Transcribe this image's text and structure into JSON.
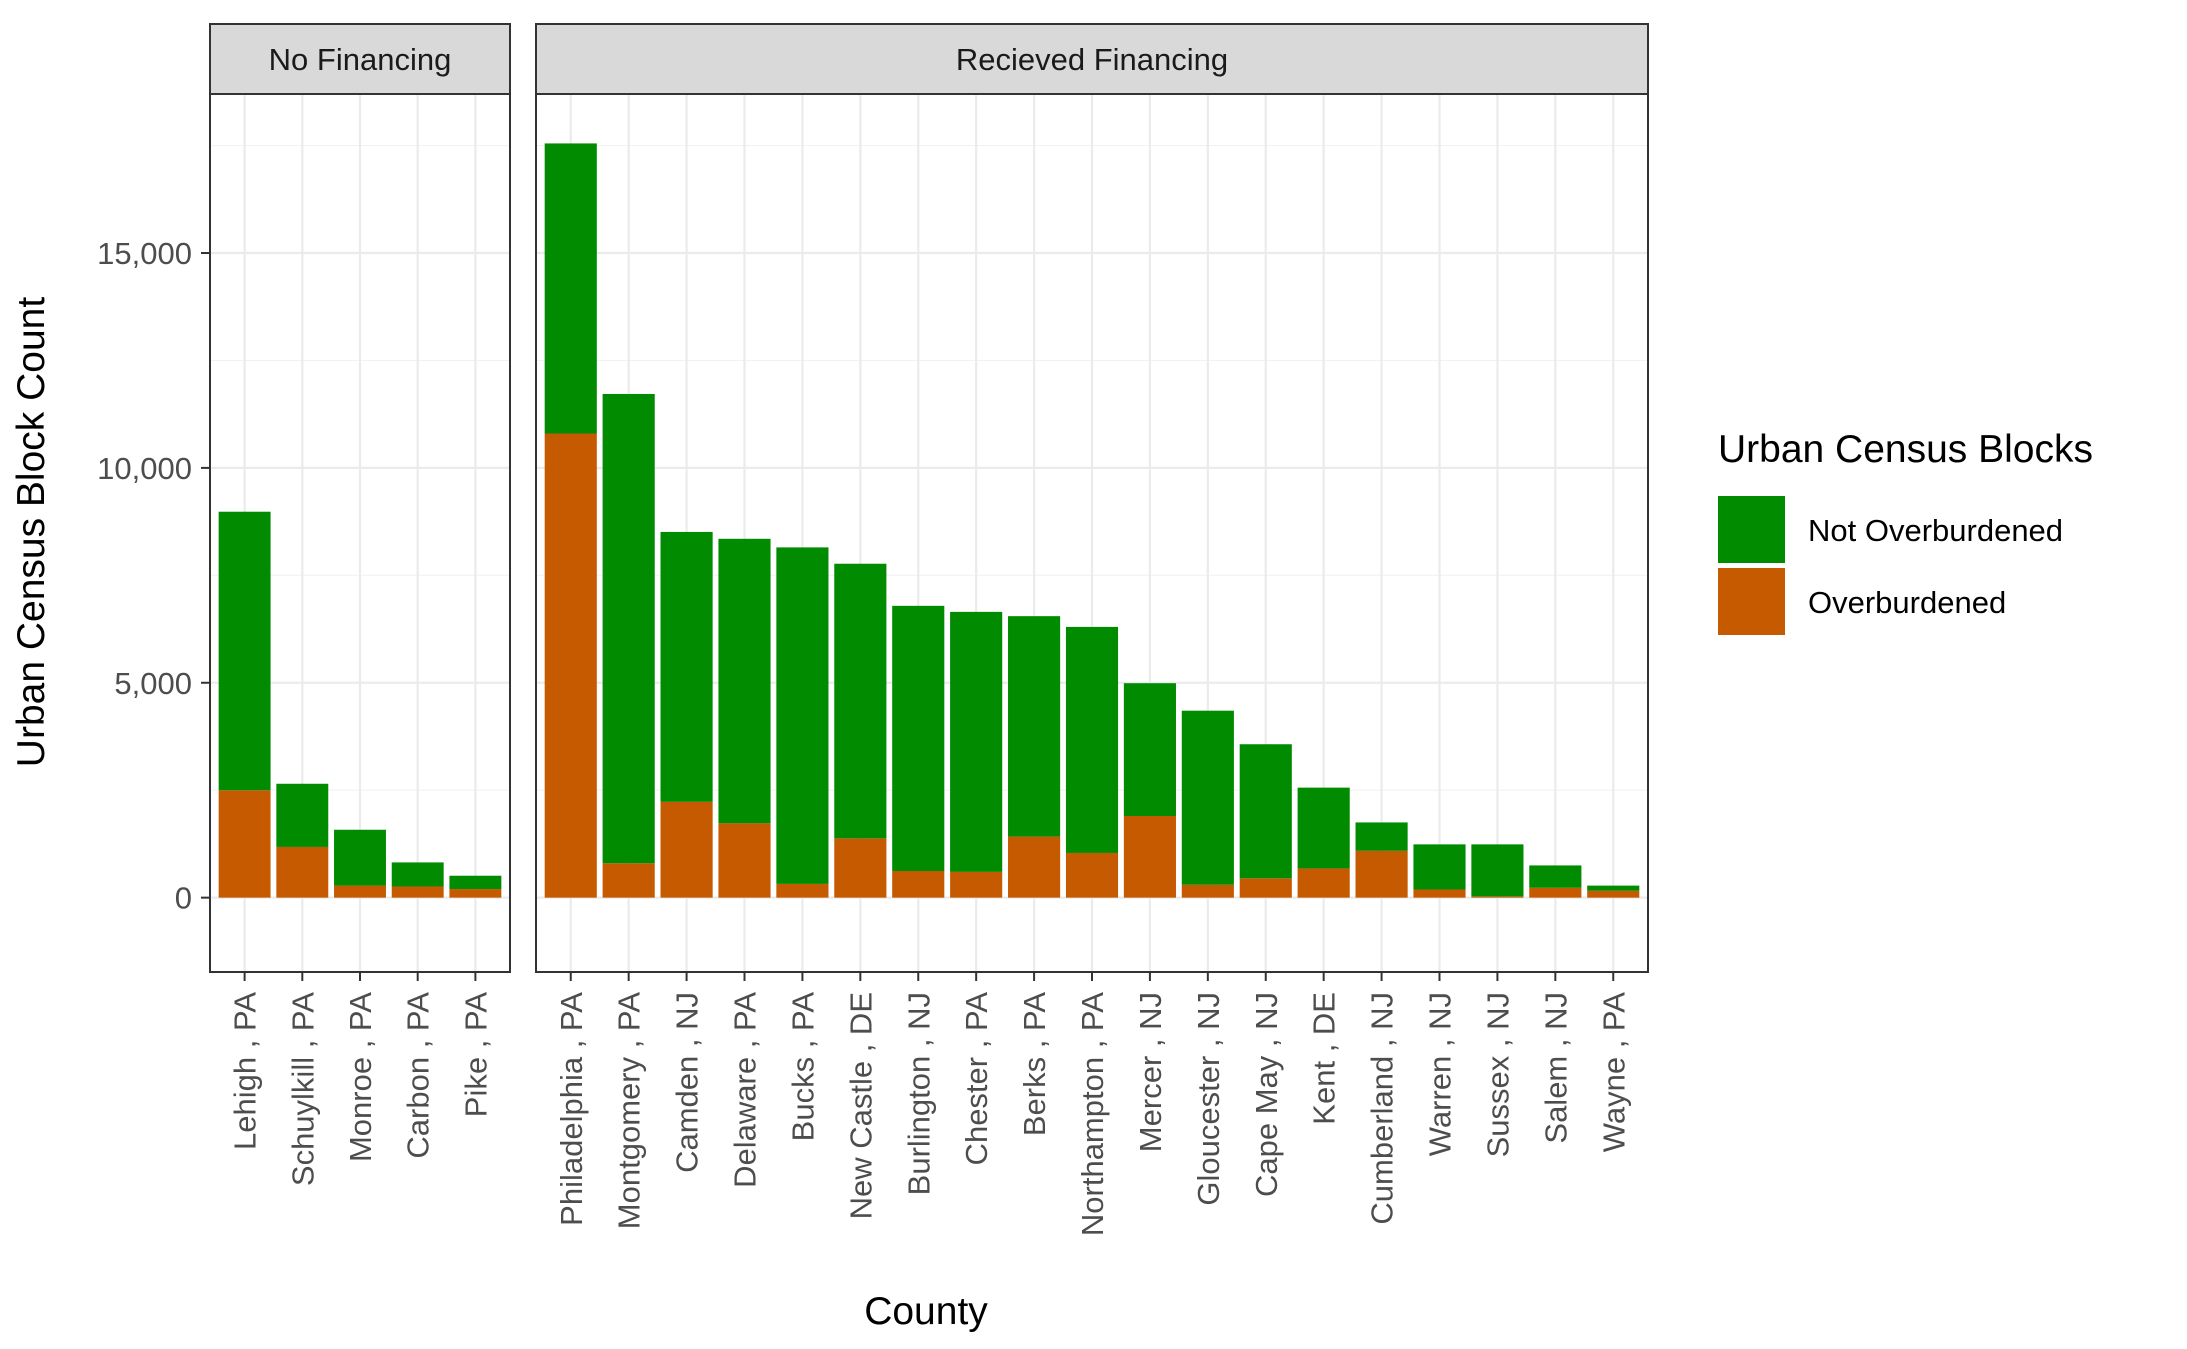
{
  "chart_data": {
    "type": "bar",
    "stacked": true,
    "xlabel": "County",
    "ylabel": "Urban Census Block Count",
    "ylim": [
      0,
      17600
    ],
    "yticks": [
      0,
      5000,
      10000,
      15000
    ],
    "ytick_labels": [
      "0",
      "5,000",
      "10,000",
      "15,000"
    ],
    "grid": true,
    "legend": {
      "title": "Urban Census Blocks",
      "position": "right",
      "entries": [
        "Not Overburdened",
        "Overburdened"
      ]
    },
    "colors": {
      "Not Overburdened": "#008B00",
      "Overburdened": "#C55A00"
    },
    "facets": [
      {
        "label": "No Financing",
        "categories": [
          "Lehigh , PA",
          "Schuylkill , PA",
          "Monroe , PA",
          "Carbon , PA",
          "Pike , PA"
        ],
        "series": [
          {
            "name": "Overburdened",
            "values": [
              2500,
              1180,
              280,
              260,
              200
            ]
          },
          {
            "name": "Not Overburdened",
            "values": [
              6480,
              1470,
              1300,
              560,
              310
            ]
          }
        ]
      },
      {
        "label": "Recieved Financing",
        "categories": [
          "Philadelphia , PA",
          "Montgomery , PA",
          "Camden , NJ",
          "Delaware , PA",
          "Bucks , PA",
          "New Castle , DE",
          "Burlington , NJ",
          "Chester , PA",
          "Berks , PA",
          "Northampton , PA",
          "Mercer , NJ",
          "Gloucester , NJ",
          "Cape May , NJ",
          "Kent , DE",
          "Cumberland , NJ",
          "Warren , NJ",
          "Sussex , NJ",
          "Salem , NJ",
          "Wayne , PA"
        ],
        "series": [
          {
            "name": "Overburdened",
            "values": [
              10800,
              800,
              2230,
              1730,
              320,
              1380,
              620,
              600,
              1420,
              1040,
              1900,
              300,
              450,
              680,
              1090,
              190,
              30,
              230,
              160
            ]
          },
          {
            "name": "Not Overburdened",
            "values": [
              6750,
              10920,
              6280,
              6620,
              7830,
              6390,
              6170,
              6050,
              5130,
              5260,
              3090,
              4050,
              3120,
              1880,
              660,
              1050,
              1210,
              520,
              120
            ]
          }
        ]
      }
    ]
  }
}
